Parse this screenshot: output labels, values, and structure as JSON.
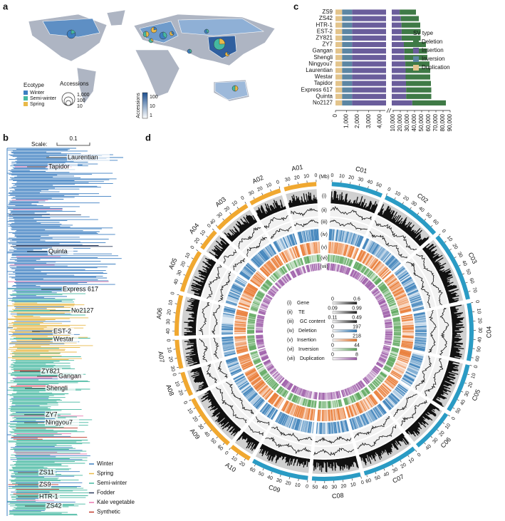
{
  "panels": {
    "a": {
      "label": "a",
      "legend_title": "Ecotype",
      "ecotypes": [
        {
          "name": "Winter",
          "color": "#3d7fc1"
        },
        {
          "name": "Semi-winter",
          "color": "#45b8a0"
        },
        {
          "name": "Spring",
          "color": "#e9b949"
        }
      ],
      "size_title": "Accessions",
      "size_labels": [
        "1,000",
        "100",
        "10"
      ],
      "colorbar_title": "Accessions",
      "colorbar_labels": [
        "100",
        "10",
        "1"
      ]
    },
    "b": {
      "label": "b",
      "scale_label": "Scale:",
      "scale_value": "0.1",
      "accessions": [
        "Laurentian",
        "Tapidor",
        "Quinta",
        "Express 617",
        "No2127",
        "EST-2",
        "Westar",
        "ZY821",
        "Gangan",
        "Shengli",
        "ZY7",
        "Ningyou7",
        "ZS11",
        "ZS9",
        "HTR-1",
        "ZS42"
      ],
      "legend": [
        {
          "name": "Winter",
          "color": "#3d7fc1"
        },
        {
          "name": "Spring",
          "color": "#e9b949"
        },
        {
          "name": "Semi-winter",
          "color": "#45b8a0"
        },
        {
          "name": "Fodder",
          "color": "#2b3a5c"
        },
        {
          "name": "Kale vegetable",
          "color": "#e879b0"
        },
        {
          "name": "Synthetic",
          "color": "#c0392b"
        }
      ]
    },
    "c": {
      "label": "c"
    },
    "d": {
      "label": "d",
      "unit": "(Mb)",
      "chromosomes": [
        {
          "name": "A01",
          "length": 36,
          "color": "#f0a830",
          "ticks": [
            0,
            10,
            20,
            30
          ]
        },
        {
          "name": "A02",
          "length": 36,
          "color": "#f0a830",
          "ticks": [
            0,
            10,
            20,
            30
          ]
        },
        {
          "name": "A03",
          "length": 41,
          "color": "#f0a830",
          "ticks": [
            0,
            10,
            20,
            30,
            40
          ]
        },
        {
          "name": "A04",
          "length": 24,
          "color": "#f0a830",
          "ticks": [
            0,
            10,
            20
          ]
        },
        {
          "name": "A05",
          "length": 48,
          "color": "#f0a830",
          "ticks": [
            0,
            10,
            20,
            30,
            40
          ]
        },
        {
          "name": "A06",
          "length": 45,
          "color": "#f0a830",
          "ticks": [
            0,
            10,
            20,
            30,
            40
          ]
        },
        {
          "name": "A07",
          "length": 32,
          "color": "#f0a830",
          "ticks": [
            0,
            10,
            20,
            30
          ]
        },
        {
          "name": "A08",
          "length": 27,
          "color": "#f0a830",
          "ticks": [
            0,
            10,
            20
          ]
        },
        {
          "name": "A09",
          "length": 64,
          "color": "#f0a830",
          "ticks": [
            0,
            10,
            20,
            30,
            40,
            50,
            60
          ]
        },
        {
          "name": "A10",
          "length": 24,
          "color": "#f0a830",
          "ticks": [
            0,
            10,
            20
          ]
        },
        {
          "name": "C01",
          "length": 57,
          "color": "#2a9bc4",
          "ticks": [
            0,
            10,
            20,
            30,
            40,
            50
          ]
        },
        {
          "name": "C02",
          "length": 68,
          "color": "#2a9bc4",
          "ticks": [
            0,
            10,
            20,
            30,
            40,
            50,
            60
          ]
        },
        {
          "name": "C03",
          "length": 78,
          "color": "#2a9bc4",
          "ticks": [
            0,
            10,
            20,
            30,
            40,
            50,
            60,
            70
          ]
        },
        {
          "name": "C04",
          "length": 64,
          "color": "#2a9bc4",
          "ticks": [
            0,
            10,
            20,
            30,
            40,
            50,
            60
          ]
        },
        {
          "name": "C05",
          "length": 55,
          "color": "#2a9bc4",
          "ticks": [
            0,
            10,
            20,
            30,
            40,
            50
          ]
        },
        {
          "name": "C06",
          "length": 48,
          "color": "#2a9bc4",
          "ticks": [
            0,
            10,
            20,
            30,
            40
          ]
        },
        {
          "name": "C07",
          "length": 62,
          "color": "#2a9bc4",
          "ticks": [
            0,
            10,
            20,
            30,
            40,
            50,
            60
          ]
        },
        {
          "name": "C08",
          "length": 54,
          "color": "#2a9bc4",
          "ticks": [
            0,
            10,
            20,
            30,
            40,
            50
          ]
        },
        {
          "name": "C09",
          "length": 64,
          "color": "#2a9bc4",
          "ticks": [
            0,
            10,
            20,
            30,
            40,
            50,
            60
          ]
        }
      ],
      "tracks": [
        {
          "id": "(i)",
          "name": "Gene",
          "min": 0,
          "max": 0.6,
          "color": "#222222"
        },
        {
          "id": "(ii)",
          "name": "TE",
          "min": 0.09,
          "max": 0.99,
          "color": "#222222"
        },
        {
          "id": "(iii)",
          "name": "GC content",
          "min": 0.11,
          "max": 0.49,
          "color": "#222222"
        },
        {
          "id": "(iv)",
          "name": "Deletion",
          "min": 0,
          "max": 197,
          "color": "#2f78b5"
        },
        {
          "id": "(v)",
          "name": "Insertion",
          "min": 0,
          "max": 218,
          "color": "#e8742a"
        },
        {
          "id": "(vi)",
          "name": "Inversion",
          "min": 0,
          "max": 44,
          "color": "#5aa55a"
        },
        {
          "id": "(vii)",
          "name": "Duplication",
          "min": 0,
          "max": 8,
          "color": "#9b59a6"
        }
      ]
    }
  },
  "chart_data": {
    "type": "bar",
    "orientation": "horizontal",
    "stacked": true,
    "categories": [
      "ZS9",
      "ZS42",
      "HTR-1",
      "EST-2",
      "ZY821",
      "ZY7",
      "Gangan",
      "Shengli",
      "Ningyou7",
      "Laurentian",
      "Westar",
      "Tapidor",
      "Express 617",
      "Quinta",
      "No2127"
    ],
    "legend_title": "SV type",
    "series": [
      {
        "name": "Deletion",
        "color": "#3f7a46",
        "values": [
          22900,
          25200,
          26300,
          26600,
          26600,
          31000,
          31800,
          32100,
          33900,
          34500,
          34500,
          35000,
          35300,
          35300,
          47200
        ]
      },
      {
        "name": "Insertion",
        "color": "#6a5d9b",
        "values": [
          17600,
          19300,
          20200,
          20400,
          20400,
          23500,
          24200,
          24400,
          25600,
          26000,
          26000,
          26500,
          26700,
          26700,
          35300
        ]
      },
      {
        "name": "Inversion",
        "color": "#5c86a3",
        "values": [
          900,
          900,
          900,
          900,
          900,
          900,
          900,
          900,
          900,
          900,
          900,
          900,
          900,
          900,
          900
        ]
      },
      {
        "name": "Duplication",
        "color": "#e3c48c",
        "values": [
          600,
          600,
          600,
          600,
          600,
          600,
          600,
          600,
          600,
          600,
          600,
          600,
          600,
          600,
          600
        ]
      }
    ],
    "xlim": [
      0,
      90000
    ],
    "xbreak": [
      4500,
      9000
    ],
    "xticks": [
      0,
      {
        "value": 1000,
        "label": "1,000"
      },
      {
        "value": 2000,
        "label": "2,000"
      },
      {
        "value": 3000,
        "label": "3,000"
      },
      {
        "value": 4000,
        "label": "4,000"
      },
      {
        "value": 10000,
        "label": "10,000"
      },
      {
        "value": 20000,
        "label": "20,000"
      },
      {
        "value": 30000,
        "label": "30,000"
      },
      {
        "value": 40000,
        "label": "40,000"
      },
      {
        "value": 50000,
        "label": "50,000"
      },
      {
        "value": 60000,
        "label": "60,000"
      },
      {
        "value": 70000,
        "label": "70,000"
      },
      {
        "value": 80000,
        "label": "80,000"
      },
      {
        "value": 90000,
        "label": "90,000"
      }
    ]
  }
}
